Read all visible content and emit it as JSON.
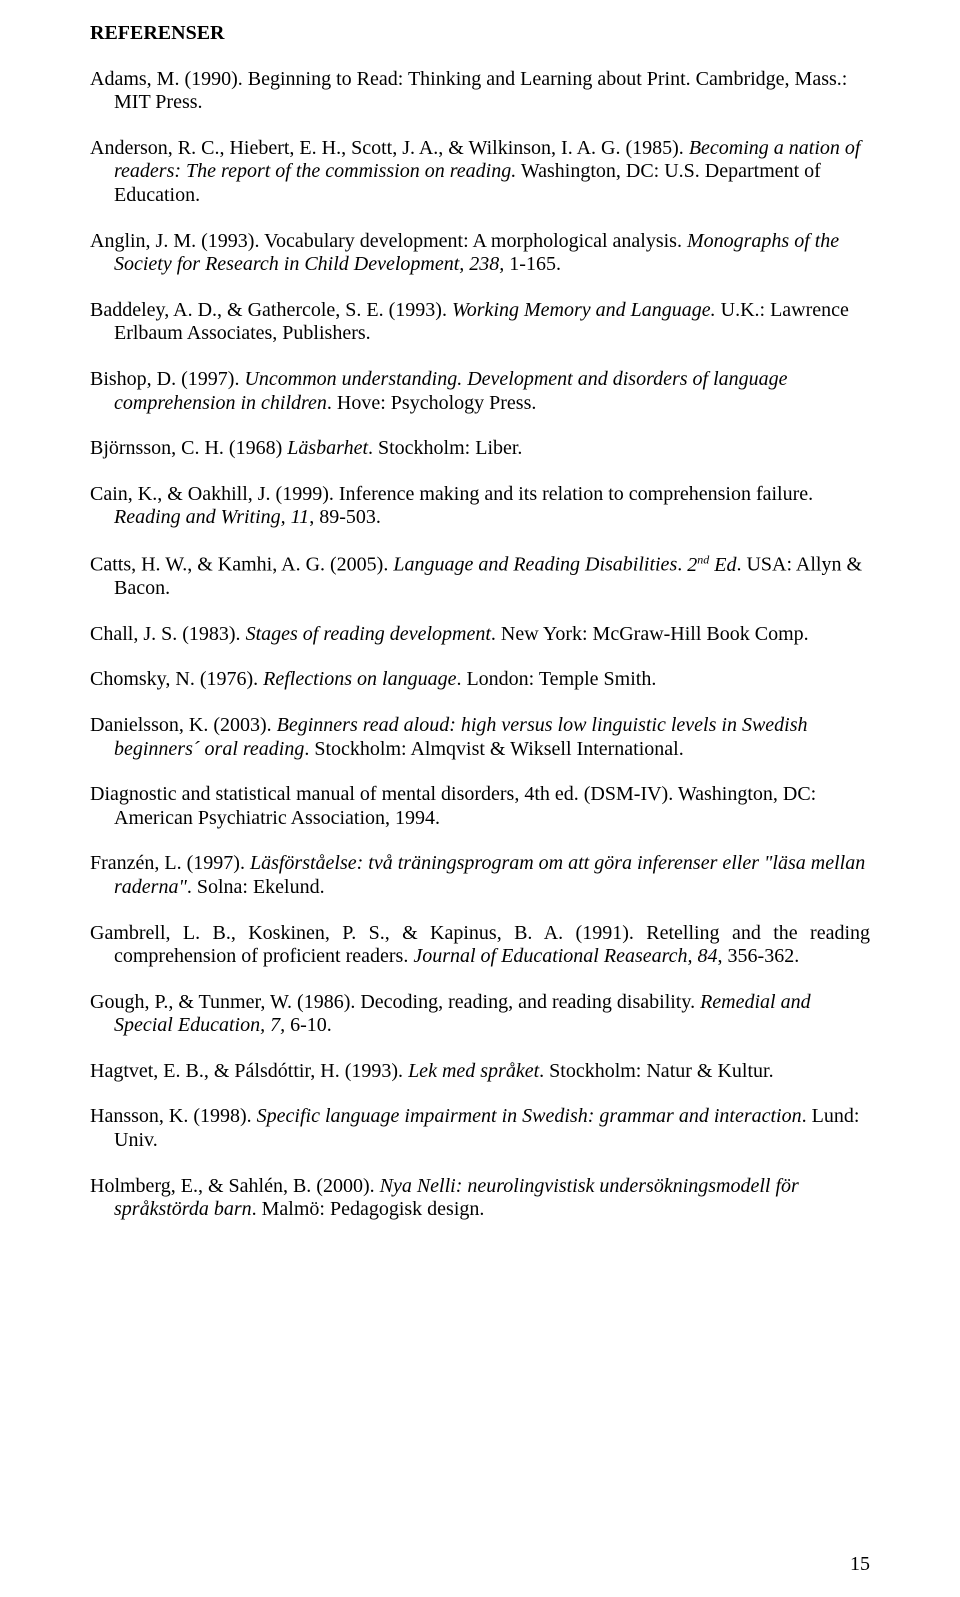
{
  "heading": "REFERENSER",
  "refs": [
    {
      "html": "Adams, M. (1990). Beginning to Read: Thinking and Learning about Print. Cambridge, Mass.: MIT Press."
    },
    {
      "html": "Anderson, R. C., Hiebert, E. H., Scott, J. A., & Wilkinson, I. A. G. (1985). <i>Becoming a nation of readers: The report of the commission on reading.</i> Washington, DC: U.S. Department of Education."
    },
    {
      "html": "Anglin, J. M. (1993). Vocabulary development: A morphological analysis. <i>Monographs of the Society for Research in Child Development, 238,</i> 1-165."
    },
    {
      "html": "Baddeley, A. D., & Gathercole, S. E. (1993). <i>Working Memory and Language.</i> U.K.: Lawrence Erlbaum Associates, Publishers."
    },
    {
      "html": "Bishop, D. (1997). <i>Uncommon understanding. Development and disorders of language comprehension in children</i>. Hove: Psychology Press."
    },
    {
      "html": "Björnsson, C. H. (1968) <i>Läsbarhet</i>. Stockholm: Liber."
    },
    {
      "html": "Cain, K., & Oakhill, J. (1999). Inference making and its relation to comprehension failure. <i>Reading and Writing, 11</i>, 89-503."
    },
    {
      "html": "Catts, H. W., & Kamhi, A. G. (2005). <i>Language and Reading Disabilities</i>. <i>2<span class=\"sup\">nd</span> Ed</i>. USA: Allyn & Bacon."
    },
    {
      "html": "Chall, J. S. (1983). <i>Stages of reading development</i>. New York: McGraw-Hill Book Comp."
    },
    {
      "html": "Chomsky, N. (1976). <i>Reflections on language</i>. London: Temple Smith."
    },
    {
      "html": "Danielsson, K. (2003). <i>Beginners read aloud: high versus low linguistic levels in Swedish beginners´ oral reading</i>. Stockholm: Almqvist & Wiksell International."
    },
    {
      "html": "Diagnostic and statistical manual of mental disorders, 4th ed. (DSM-IV). Washington, DC: American Psychiatric Association, 1994."
    },
    {
      "html": "Franzén, L. (1997). <i>Läsförståelse: två träningsprogram om att göra inferenser eller \"läsa mellan raderna\"</i>. Solna: Ekelund."
    },
    {
      "html": "Gambrell, L. B., Koskinen, P. S., & Kapinus, B. A. (1991). Retelling and the reading comprehension of proficient readers. <i>Journal of Educational Reasearch, 84</i>, 356-362.",
      "justify": true
    },
    {
      "html": "Gough, P., & Tunmer, W. (1986). Decoding, reading, and reading disability. <i>Remedial and Special Education, 7,</i> 6-10."
    },
    {
      "html": "Hagtvet, E. B., & Pálsdóttir, H. (1993). <i>Lek med språket</i>. Stockholm: Natur & Kultur."
    },
    {
      "html": "Hansson, K. (1998). <i>Specific language impairment in Swedish: grammar and interaction</i>. Lund: Univ."
    },
    {
      "html": "Holmberg, E., & Sahlén, B. (2000). <i>Nya Nelli: neurolingvistisk undersökningsmodell för språkstörda barn</i>. Malmö: Pedagogisk design."
    }
  ],
  "pagenum": "15"
}
